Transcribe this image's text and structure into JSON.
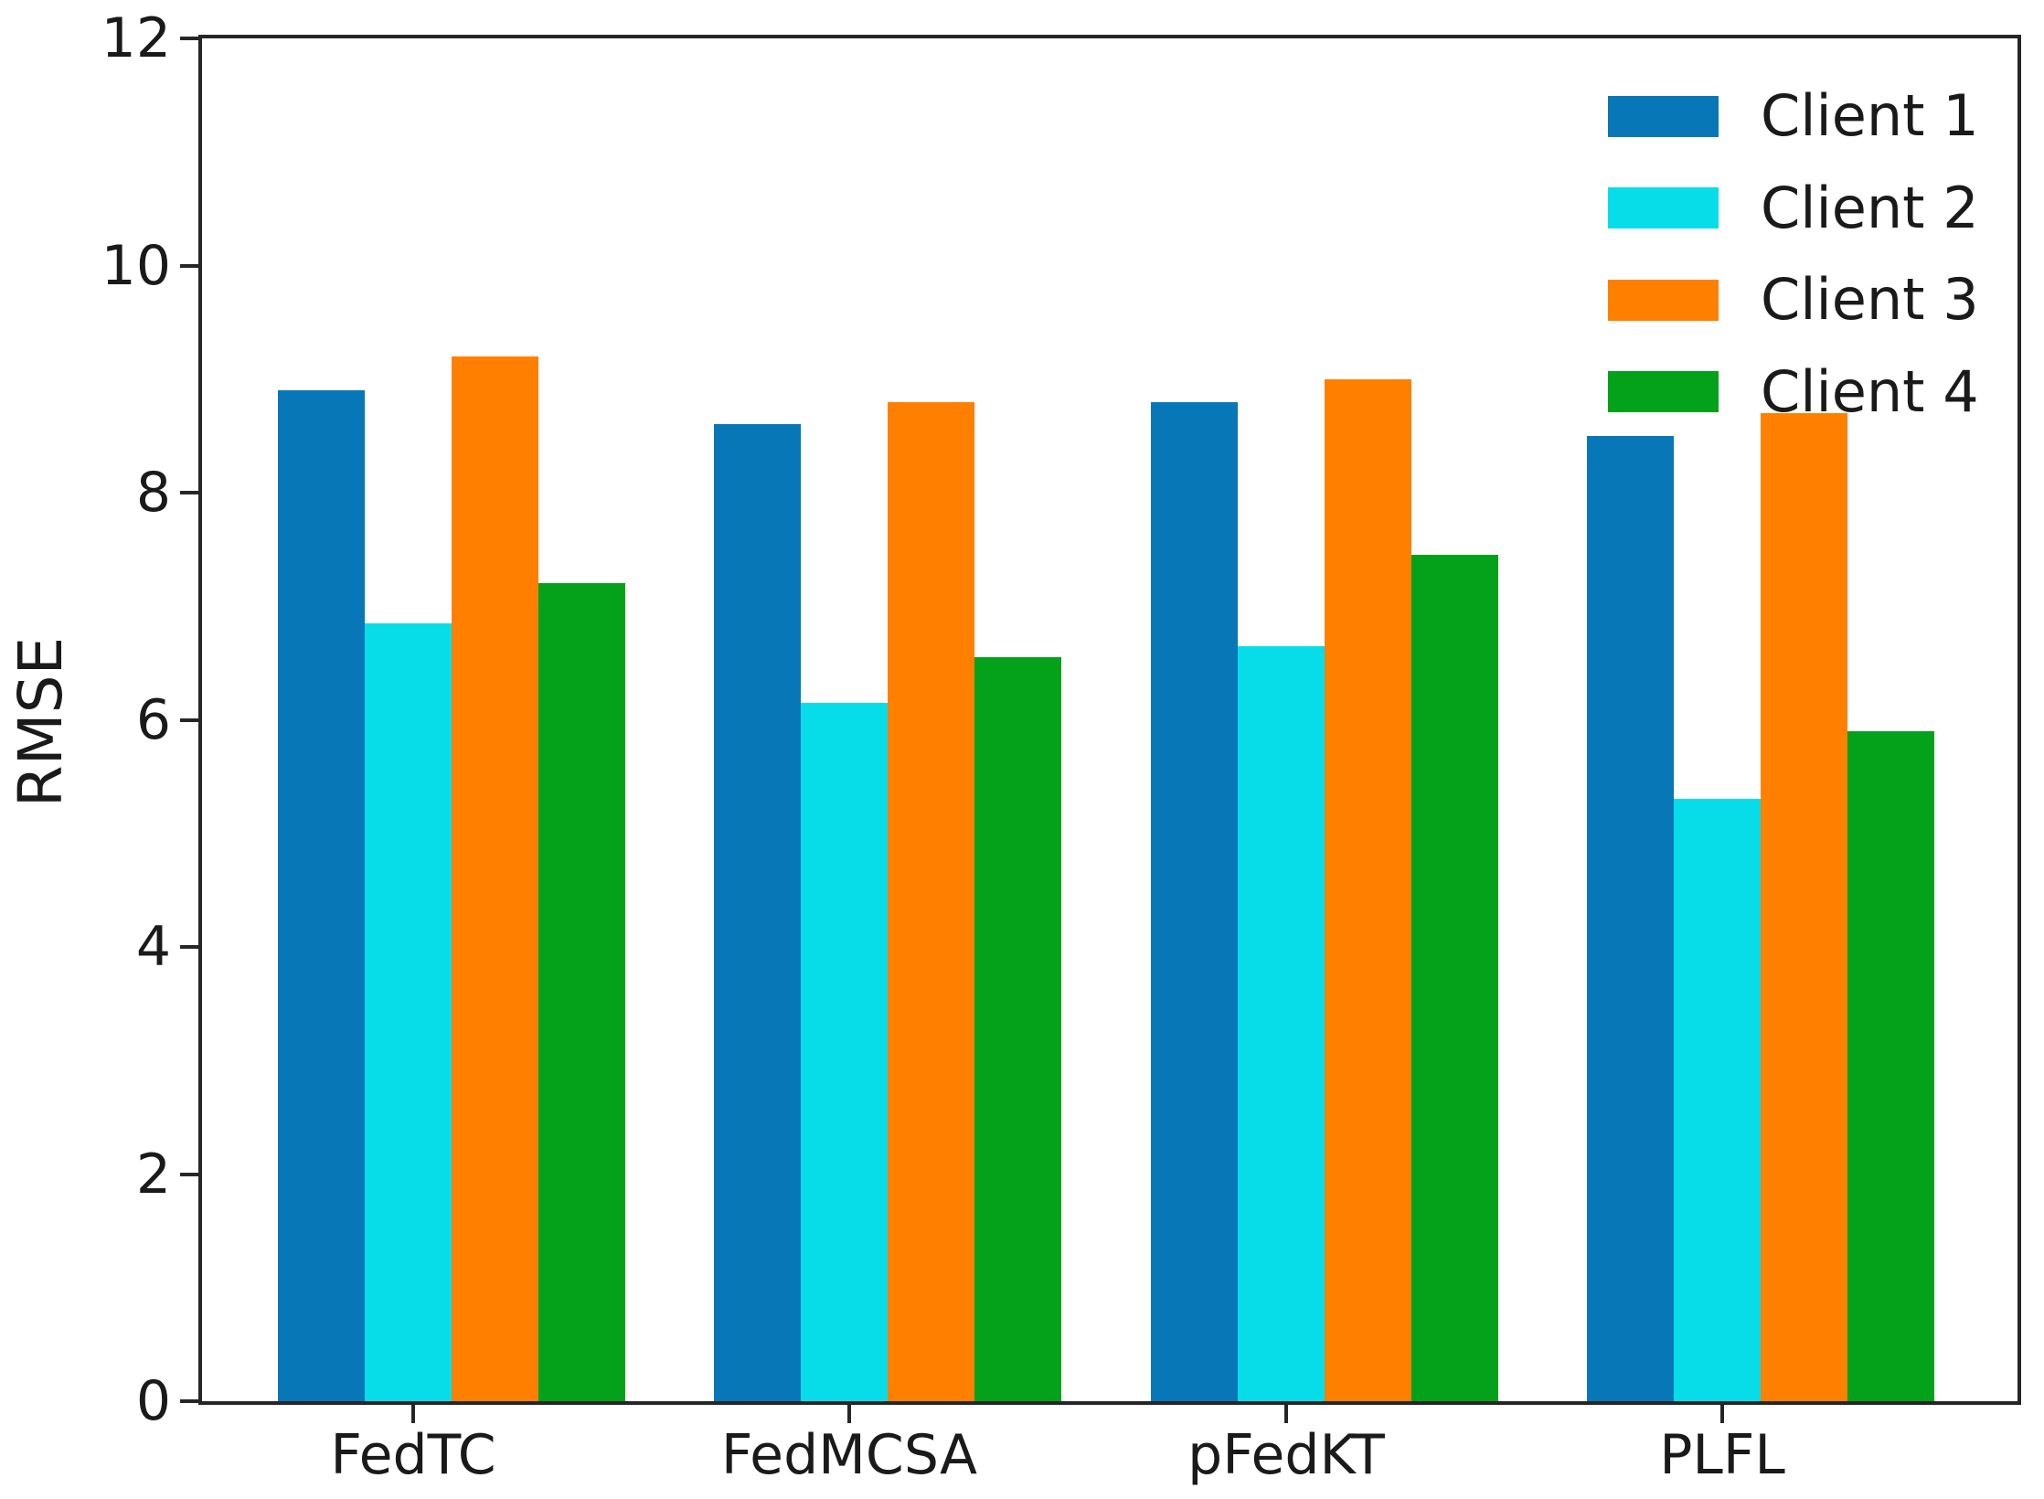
{
  "chart_data": {
    "type": "bar",
    "title": "",
    "xlabel": "",
    "ylabel": "RMSE",
    "ylim": [
      0,
      12
    ],
    "yticks": [
      0,
      2,
      4,
      6,
      8,
      10,
      12
    ],
    "grid": false,
    "legend_position": "upper right",
    "categories": [
      "FedTC",
      "FedMCSA",
      "pFedKT",
      "PLFL"
    ],
    "series": [
      {
        "name": "Client 1",
        "color": "#0777b8",
        "values": [
          8.9,
          8.6,
          8.8,
          8.5
        ]
      },
      {
        "name": "Client 2",
        "color": "#06dde9",
        "values": [
          6.85,
          6.15,
          6.65,
          5.3
        ]
      },
      {
        "name": "Client 3",
        "color": "#ff8000",
        "values": [
          9.2,
          8.8,
          9.0,
          8.7
        ]
      },
      {
        "name": "Client 4",
        "color": "#04a11a",
        "values": [
          7.2,
          6.55,
          7.45,
          5.9
        ]
      }
    ]
  }
}
